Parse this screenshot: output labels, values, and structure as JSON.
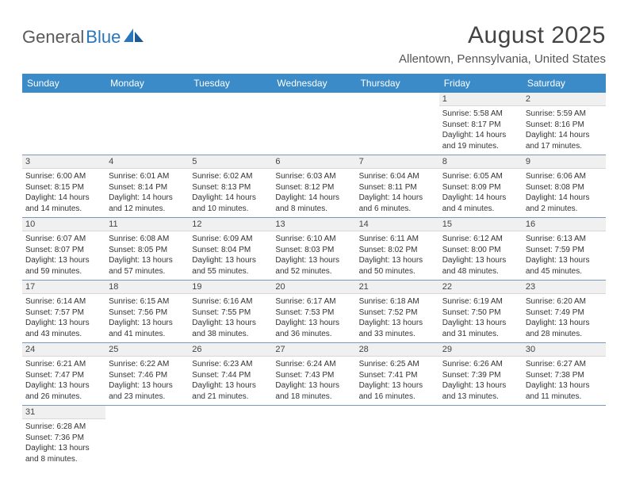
{
  "brand": {
    "name1": "General",
    "name2": "Blue"
  },
  "title": "August 2025",
  "location": "Allentown, Pennsylvania, United States",
  "colors": {
    "header_bg": "#3b8bc8",
    "header_text": "#ffffff",
    "row_divider": "#7a98b8",
    "num_bar_bg": "#f0f0f0",
    "brand_blue": "#2976bb",
    "text": "#333333"
  },
  "typography": {
    "title_fontsize": 30,
    "location_fontsize": 15,
    "header_fontsize": 12,
    "daynum_fontsize": 11,
    "body_fontsize": 10
  },
  "day_headers": [
    "Sunday",
    "Monday",
    "Tuesday",
    "Wednesday",
    "Thursday",
    "Friday",
    "Saturday"
  ],
  "weeks": [
    [
      null,
      null,
      null,
      null,
      null,
      {
        "n": "1",
        "sr": "Sunrise: 5:58 AM",
        "ss": "Sunset: 8:17 PM",
        "d1": "Daylight: 14 hours",
        "d2": "and 19 minutes."
      },
      {
        "n": "2",
        "sr": "Sunrise: 5:59 AM",
        "ss": "Sunset: 8:16 PM",
        "d1": "Daylight: 14 hours",
        "d2": "and 17 minutes."
      }
    ],
    [
      {
        "n": "3",
        "sr": "Sunrise: 6:00 AM",
        "ss": "Sunset: 8:15 PM",
        "d1": "Daylight: 14 hours",
        "d2": "and 14 minutes."
      },
      {
        "n": "4",
        "sr": "Sunrise: 6:01 AM",
        "ss": "Sunset: 8:14 PM",
        "d1": "Daylight: 14 hours",
        "d2": "and 12 minutes."
      },
      {
        "n": "5",
        "sr": "Sunrise: 6:02 AM",
        "ss": "Sunset: 8:13 PM",
        "d1": "Daylight: 14 hours",
        "d2": "and 10 minutes."
      },
      {
        "n": "6",
        "sr": "Sunrise: 6:03 AM",
        "ss": "Sunset: 8:12 PM",
        "d1": "Daylight: 14 hours",
        "d2": "and 8 minutes."
      },
      {
        "n": "7",
        "sr": "Sunrise: 6:04 AM",
        "ss": "Sunset: 8:11 PM",
        "d1": "Daylight: 14 hours",
        "d2": "and 6 minutes."
      },
      {
        "n": "8",
        "sr": "Sunrise: 6:05 AM",
        "ss": "Sunset: 8:09 PM",
        "d1": "Daylight: 14 hours",
        "d2": "and 4 minutes."
      },
      {
        "n": "9",
        "sr": "Sunrise: 6:06 AM",
        "ss": "Sunset: 8:08 PM",
        "d1": "Daylight: 14 hours",
        "d2": "and 2 minutes."
      }
    ],
    [
      {
        "n": "10",
        "sr": "Sunrise: 6:07 AM",
        "ss": "Sunset: 8:07 PM",
        "d1": "Daylight: 13 hours",
        "d2": "and 59 minutes."
      },
      {
        "n": "11",
        "sr": "Sunrise: 6:08 AM",
        "ss": "Sunset: 8:05 PM",
        "d1": "Daylight: 13 hours",
        "d2": "and 57 minutes."
      },
      {
        "n": "12",
        "sr": "Sunrise: 6:09 AM",
        "ss": "Sunset: 8:04 PM",
        "d1": "Daylight: 13 hours",
        "d2": "and 55 minutes."
      },
      {
        "n": "13",
        "sr": "Sunrise: 6:10 AM",
        "ss": "Sunset: 8:03 PM",
        "d1": "Daylight: 13 hours",
        "d2": "and 52 minutes."
      },
      {
        "n": "14",
        "sr": "Sunrise: 6:11 AM",
        "ss": "Sunset: 8:02 PM",
        "d1": "Daylight: 13 hours",
        "d2": "and 50 minutes."
      },
      {
        "n": "15",
        "sr": "Sunrise: 6:12 AM",
        "ss": "Sunset: 8:00 PM",
        "d1": "Daylight: 13 hours",
        "d2": "and 48 minutes."
      },
      {
        "n": "16",
        "sr": "Sunrise: 6:13 AM",
        "ss": "Sunset: 7:59 PM",
        "d1": "Daylight: 13 hours",
        "d2": "and 45 minutes."
      }
    ],
    [
      {
        "n": "17",
        "sr": "Sunrise: 6:14 AM",
        "ss": "Sunset: 7:57 PM",
        "d1": "Daylight: 13 hours",
        "d2": "and 43 minutes."
      },
      {
        "n": "18",
        "sr": "Sunrise: 6:15 AM",
        "ss": "Sunset: 7:56 PM",
        "d1": "Daylight: 13 hours",
        "d2": "and 41 minutes."
      },
      {
        "n": "19",
        "sr": "Sunrise: 6:16 AM",
        "ss": "Sunset: 7:55 PM",
        "d1": "Daylight: 13 hours",
        "d2": "and 38 minutes."
      },
      {
        "n": "20",
        "sr": "Sunrise: 6:17 AM",
        "ss": "Sunset: 7:53 PM",
        "d1": "Daylight: 13 hours",
        "d2": "and 36 minutes."
      },
      {
        "n": "21",
        "sr": "Sunrise: 6:18 AM",
        "ss": "Sunset: 7:52 PM",
        "d1": "Daylight: 13 hours",
        "d2": "and 33 minutes."
      },
      {
        "n": "22",
        "sr": "Sunrise: 6:19 AM",
        "ss": "Sunset: 7:50 PM",
        "d1": "Daylight: 13 hours",
        "d2": "and 31 minutes."
      },
      {
        "n": "23",
        "sr": "Sunrise: 6:20 AM",
        "ss": "Sunset: 7:49 PM",
        "d1": "Daylight: 13 hours",
        "d2": "and 28 minutes."
      }
    ],
    [
      {
        "n": "24",
        "sr": "Sunrise: 6:21 AM",
        "ss": "Sunset: 7:47 PM",
        "d1": "Daylight: 13 hours",
        "d2": "and 26 minutes."
      },
      {
        "n": "25",
        "sr": "Sunrise: 6:22 AM",
        "ss": "Sunset: 7:46 PM",
        "d1": "Daylight: 13 hours",
        "d2": "and 23 minutes."
      },
      {
        "n": "26",
        "sr": "Sunrise: 6:23 AM",
        "ss": "Sunset: 7:44 PM",
        "d1": "Daylight: 13 hours",
        "d2": "and 21 minutes."
      },
      {
        "n": "27",
        "sr": "Sunrise: 6:24 AM",
        "ss": "Sunset: 7:43 PM",
        "d1": "Daylight: 13 hours",
        "d2": "and 18 minutes."
      },
      {
        "n": "28",
        "sr": "Sunrise: 6:25 AM",
        "ss": "Sunset: 7:41 PM",
        "d1": "Daylight: 13 hours",
        "d2": "and 16 minutes."
      },
      {
        "n": "29",
        "sr": "Sunrise: 6:26 AM",
        "ss": "Sunset: 7:39 PM",
        "d1": "Daylight: 13 hours",
        "d2": "and 13 minutes."
      },
      {
        "n": "30",
        "sr": "Sunrise: 6:27 AM",
        "ss": "Sunset: 7:38 PM",
        "d1": "Daylight: 13 hours",
        "d2": "and 11 minutes."
      }
    ],
    [
      {
        "n": "31",
        "sr": "Sunrise: 6:28 AM",
        "ss": "Sunset: 7:36 PM",
        "d1": "Daylight: 13 hours",
        "d2": "and 8 minutes."
      },
      null,
      null,
      null,
      null,
      null,
      null
    ]
  ]
}
